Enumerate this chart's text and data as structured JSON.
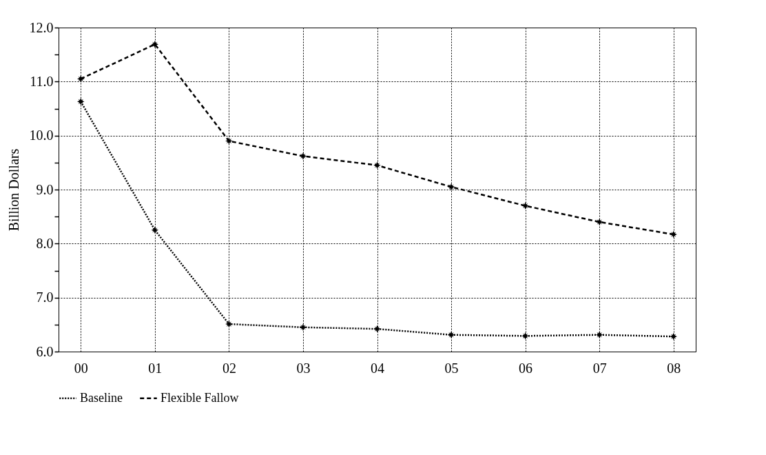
{
  "chart_data": {
    "type": "line",
    "ylabel": "Billion Dollars",
    "categories": [
      "00",
      "01",
      "02",
      "03",
      "04",
      "05",
      "06",
      "07",
      "08"
    ],
    "series": [
      {
        "name": "Baseline",
        "color": "#000000",
        "line_style": "dotted",
        "values": [
          10.63,
          8.25,
          6.51,
          6.45,
          6.42,
          6.31,
          6.29,
          6.31,
          6.28
        ]
      },
      {
        "name": "Flexible Fallow",
        "color": "#000000",
        "line_style": "dashed",
        "values": [
          11.05,
          11.69,
          9.9,
          9.62,
          9.45,
          9.05,
          8.7,
          8.4,
          8.17
        ]
      }
    ],
    "ylim": [
      6,
      12
    ],
    "yticks": [
      {
        "value": 6,
        "label": "6.0"
      },
      {
        "value": 6.5,
        "label": null
      },
      {
        "value": 7,
        "label": "7.0"
      },
      {
        "value": 7.5,
        "label": null
      },
      {
        "value": 8,
        "label": "8.0"
      },
      {
        "value": 8.5,
        "label": null
      },
      {
        "value": 9,
        "label": "9.0"
      },
      {
        "value": 9.5,
        "label": null
      },
      {
        "value": 10,
        "label": "10.0"
      },
      {
        "value": 10.5,
        "label": null
      },
      {
        "value": 11,
        "label": "11.0"
      },
      {
        "value": 11.5,
        "label": null
      },
      {
        "value": 12,
        "label": "12.0"
      }
    ],
    "grid": true,
    "legend": "bottom",
    "marker": "star"
  }
}
